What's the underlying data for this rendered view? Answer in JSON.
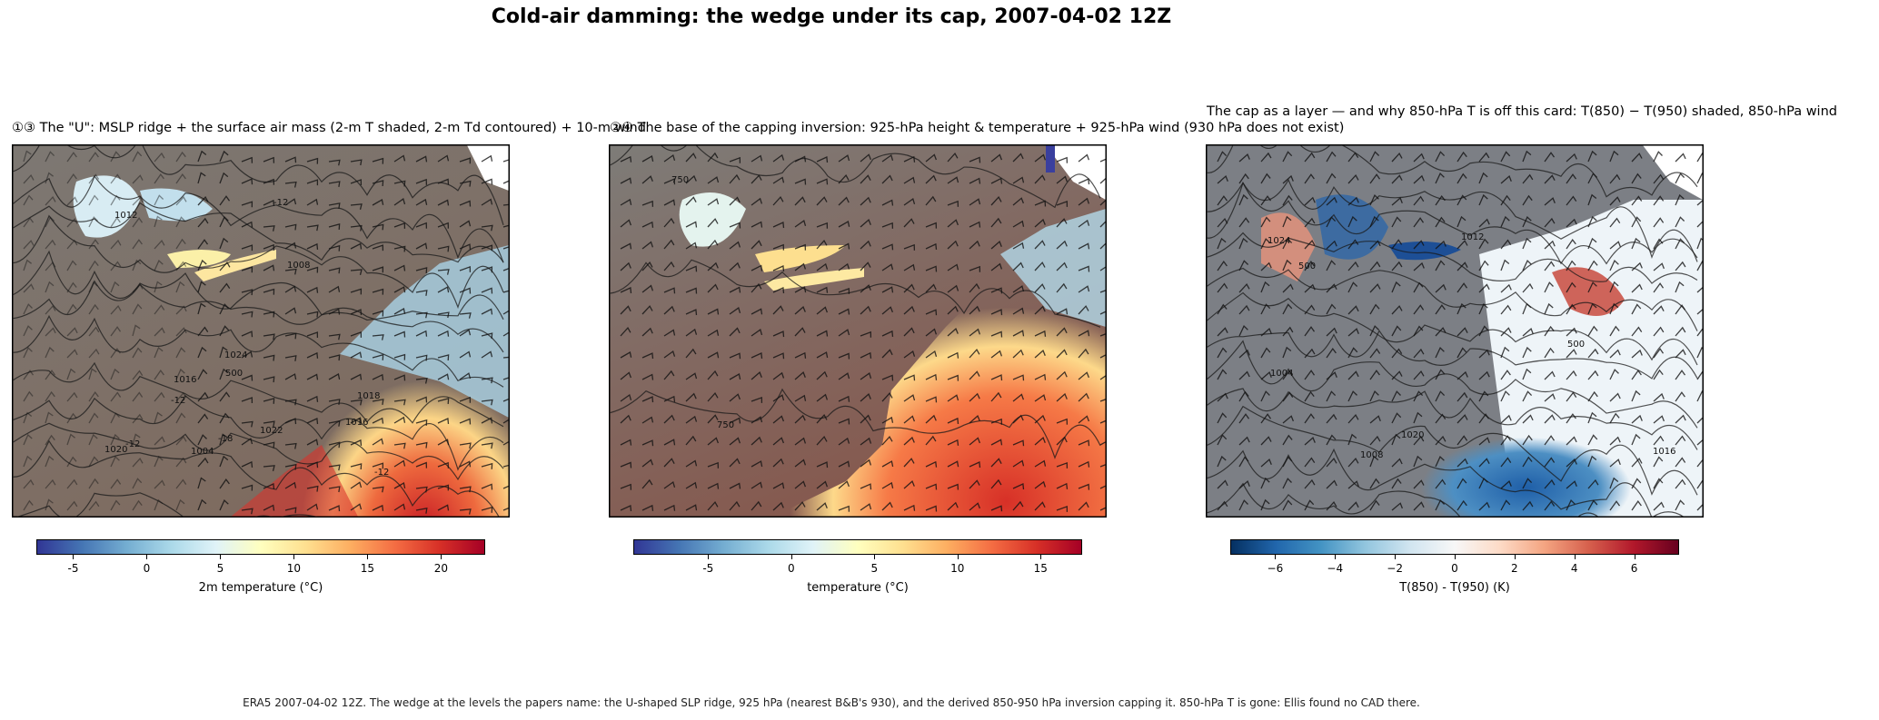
{
  "figure": {
    "title": "Cold-air damming: the wedge under its cap, 2007-04-02 12Z",
    "caption": "ERA5 2007-04-02 12Z. The wedge at the levels the papers name: the U-shaped SLP ridge, 925 hPa (nearest B&B's 930), and the derived 850-950 hPa inversion capping it. 850-hPa T is gone: Ellis found no CAD there."
  },
  "panels": [
    {
      "title": "①③ The \"U\": MSLP ridge + the surface air mass (2-m T shaded, 2-m Td contoured) + 10-m wind",
      "colorbar": {
        "label": "2m temperature (°C)",
        "min": -7.5,
        "max": 23,
        "ticks": [
          "-5",
          "0",
          "5",
          "10",
          "15",
          "20"
        ],
        "colormap": "RdYlBu_r"
      },
      "contour_labels": [
        "1004",
        "1008",
        "1012",
        "1016",
        "1016",
        "1018",
        "1020",
        "1022",
        "1024",
        "-12",
        "-12",
        "-12",
        "-12",
        "-18",
        "500"
      ]
    },
    {
      "title": "②④ The base of the capping inversion: 925-hPa height & temperature + 925-hPa wind (930 hPa does not exist)",
      "colorbar": {
        "label": "temperature (°C)",
        "min": -9.5,
        "max": 17.5,
        "ticks": [
          "-5",
          "0",
          "5",
          "10",
          "15"
        ],
        "colormap": "RdYlBu_r"
      },
      "contour_labels": [
        "750",
        "750"
      ]
    },
    {
      "title": "The cap as a layer — and why 850-hPa T is off this card: T(850) − T(950) shaded, 850-hPa wind",
      "colorbar": {
        "label": "T(850) - T(950) (K)",
        "min": -7.5,
        "max": 7.5,
        "ticks": [
          "−6",
          "−4",
          "−2",
          "0",
          "2",
          "4",
          "6"
        ],
        "colormap": "RdBu_r"
      },
      "contour_labels": [
        "1004",
        "1008",
        "1012",
        "1016",
        "1020",
        "1024",
        "500",
        "500"
      ]
    }
  ]
}
